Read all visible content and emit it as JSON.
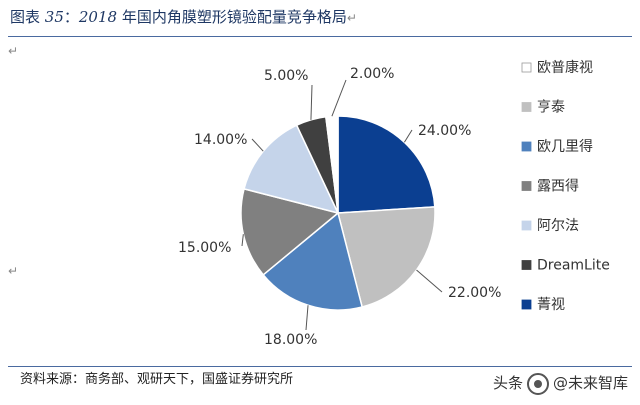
{
  "figure": {
    "title_prefix": "图表 ",
    "title_number": "35",
    "title_colon": "：",
    "title_year": "2018",
    "title_text": " 年国内角膜塑形镜验配量竞争格局"
  },
  "chart_data": {
    "type": "pie",
    "title": "",
    "unit": "%",
    "slices": [
      {
        "name": "菁视",
        "value": 24.0,
        "label": "24.00%",
        "color": "#0b3f91"
      },
      {
        "name": "亨泰",
        "value": 22.0,
        "label": "22.00%",
        "color": "#c0c0c0"
      },
      {
        "name": "欧几里得",
        "value": 18.0,
        "label": "18.00%",
        "color": "#4f81bd"
      },
      {
        "name": "露西得",
        "value": 15.0,
        "label": "15.00%",
        "color": "#808080"
      },
      {
        "name": "阿尔法",
        "value": 14.0,
        "label": "14.00%",
        "color": "#c5d4ea"
      },
      {
        "name": "DreamLite",
        "value": 5.0,
        "label": "5.00%",
        "color": "#404040"
      },
      {
        "name": "欧普康视",
        "value": 2.0,
        "label": "2.00%",
        "color": "#ffffff"
      }
    ],
    "legend": {
      "placement": "right",
      "items": [
        {
          "name": "欧普康视",
          "color": "#ffffff"
        },
        {
          "name": "亨泰",
          "color": "#c0c0c0"
        },
        {
          "name": "欧几里得",
          "color": "#4f81bd"
        },
        {
          "name": "露西得",
          "color": "#808080"
        },
        {
          "name": "阿尔法",
          "color": "#c5d4ea"
        },
        {
          "name": "DreamLite",
          "color": "#404040"
        },
        {
          "name": "菁视",
          "color": "#0b3f91"
        }
      ]
    }
  },
  "source": {
    "text": "资料来源：商务部、观研天下，国盛证券研究所"
  },
  "watermark": {
    "prefix": "头条",
    "name": "@未来智库"
  },
  "marks": {
    "arrow": "↵"
  }
}
